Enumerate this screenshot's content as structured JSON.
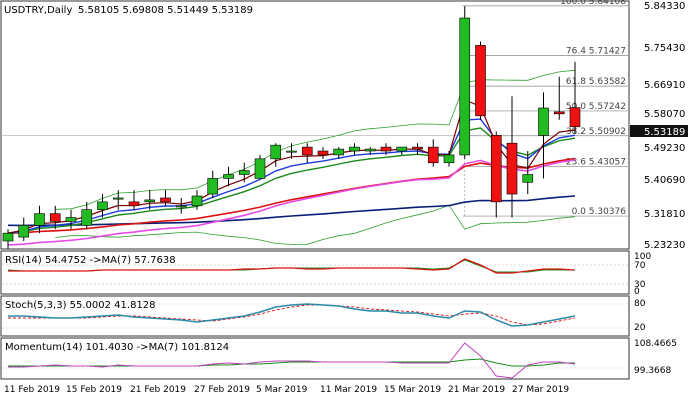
{
  "header": {
    "symbol_tf": "USDTRY,Daily",
    "ohlc": "5.58105 5.69808 5.51449 5.53189"
  },
  "price_axis": {
    "ticks": [
      "5.84330",
      "5.75430",
      "5.66910",
      "5.58070",
      "5.49230",
      "5.40690",
      "5.31810",
      "5.23230"
    ],
    "current_price": "5.53189"
  },
  "fib_levels": [
    {
      "label": "100.0 5.84108",
      "value": 5.84108
    },
    {
      "label": "76.4 5.71427",
      "value": 5.71427
    },
    {
      "label": "61.8 5.63582",
      "value": 5.63582
    },
    {
      "label": "50.0 5.57242",
      "value": 5.57242
    },
    {
      "label": "38.2 5.50902",
      "value": 5.50902
    },
    {
      "label": "23.6 5.43057",
      "value": 5.43057
    },
    {
      "label": "0.0 5.30376",
      "value": 5.30376
    }
  ],
  "x_axis": {
    "labels": [
      "11 Feb 2019",
      "15 Feb 2019",
      "21 Feb 2019",
      "27 Feb 2019",
      "5 Mar 2019",
      "11 Mar 2019",
      "15 Mar 2019",
      "21 Mar 2019",
      "27 Mar 2019"
    ]
  },
  "rsi": {
    "label": "RSI(14) 54.4752  ->MA(7) 57.7638",
    "ticks": [
      "100",
      "70",
      "30",
      "0"
    ]
  },
  "stoch": {
    "label": "Stoch(5,3,3) 55.0002 41.8128",
    "ticks": [
      "80",
      "20"
    ]
  },
  "momentum": {
    "label": "Momentum(14) 101.4030  ->MA(7) 101.8124",
    "ticks": [
      "108.4665",
      "99.3668"
    ]
  },
  "colors": {
    "bull": "#22bb22",
    "bear": "#ee1111",
    "ma_red": "#dd1111",
    "ma_navy": "#0a1e78",
    "ma_blue": "#1e3cdc",
    "ma_green": "#1a8a1a",
    "ma_magenta": "#e64be6",
    "ma_darkred": "#780000",
    "bollinger": "#2ea02e",
    "price_tag": "#111111"
  },
  "chart_data": {
    "type": "candlestick",
    "x": [
      "8 Feb 2019",
      "11 Feb 2019",
      "12 Feb 2019",
      "13 Feb 2019",
      "14 Feb 2019",
      "15 Feb 2019",
      "18 Feb 2019",
      "19 Feb 2019",
      "20 Feb 2019",
      "21 Feb 2019",
      "22 Feb 2019",
      "25 Feb 2019",
      "26 Feb 2019",
      "27 Feb 2019",
      "28 Feb 2019",
      "1 Mar 2019",
      "4 Mar 2019",
      "5 Mar 2019",
      "6 Mar 2019",
      "7 Mar 2019",
      "8 Mar 2019",
      "11 Mar 2019",
      "12 Mar 2019",
      "13 Mar 2019",
      "14 Mar 2019",
      "15 Mar 2019",
      "18 Mar 2019",
      "19 Mar 2019",
      "20 Mar 2019",
      "21 Mar 2019",
      "22 Mar 2019",
      "25 Mar 2019",
      "26 Mar 2019",
      "27 Mar 2019",
      "28 Mar 2019",
      "29 Mar 2019",
      "1 Apr 2019"
    ],
    "ohlc": [
      [
        5.24,
        5.27,
        5.22,
        5.26
      ],
      [
        5.25,
        5.3,
        5.24,
        5.28
      ],
      [
        5.28,
        5.33,
        5.26,
        5.31
      ],
      [
        5.31,
        5.33,
        5.27,
        5.29
      ],
      [
        5.29,
        5.32,
        5.27,
        5.3
      ],
      [
        5.28,
        5.34,
        5.27,
        5.32
      ],
      [
        5.32,
        5.36,
        5.3,
        5.34
      ],
      [
        5.35,
        5.37,
        5.32,
        5.35
      ],
      [
        5.34,
        5.37,
        5.32,
        5.33
      ],
      [
        5.34,
        5.37,
        5.32,
        5.345
      ],
      [
        5.35,
        5.37,
        5.33,
        5.34
      ],
      [
        5.33,
        5.35,
        5.31,
        5.33
      ],
      [
        5.33,
        5.37,
        5.32,
        5.355
      ],
      [
        5.36,
        5.42,
        5.35,
        5.4
      ],
      [
        5.4,
        5.43,
        5.38,
        5.41
      ],
      [
        5.41,
        5.44,
        5.39,
        5.42
      ],
      [
        5.4,
        5.46,
        5.4,
        5.45
      ],
      [
        5.45,
        5.49,
        5.43,
        5.485
      ],
      [
        5.47,
        5.49,
        5.45,
        5.47
      ],
      [
        5.48,
        5.49,
        5.44,
        5.46
      ],
      [
        5.47,
        5.48,
        5.45,
        5.46
      ],
      [
        5.46,
        5.48,
        5.45,
        5.475
      ],
      [
        5.47,
        5.49,
        5.46,
        5.48
      ],
      [
        5.47,
        5.48,
        5.46,
        5.475
      ],
      [
        5.48,
        5.49,
        5.46,
        5.47
      ],
      [
        5.47,
        5.48,
        5.46,
        5.48
      ],
      [
        5.48,
        5.49,
        5.46,
        5.475
      ],
      [
        5.48,
        5.5,
        5.43,
        5.44
      ],
      [
        5.44,
        5.47,
        5.43,
        5.46
      ],
      [
        5.46,
        5.84,
        5.45,
        5.81
      ],
      [
        5.74,
        5.75,
        5.55,
        5.56
      ],
      [
        5.51,
        5.52,
        5.3,
        5.34
      ],
      [
        5.49,
        5.61,
        5.3,
        5.36
      ],
      [
        5.39,
        5.47,
        5.36,
        5.41
      ],
      [
        5.51,
        5.62,
        5.4,
        5.58
      ],
      [
        5.57,
        5.66,
        5.55,
        5.565
      ],
      [
        5.58105,
        5.69808,
        5.51449,
        5.53189
      ]
    ]
  }
}
